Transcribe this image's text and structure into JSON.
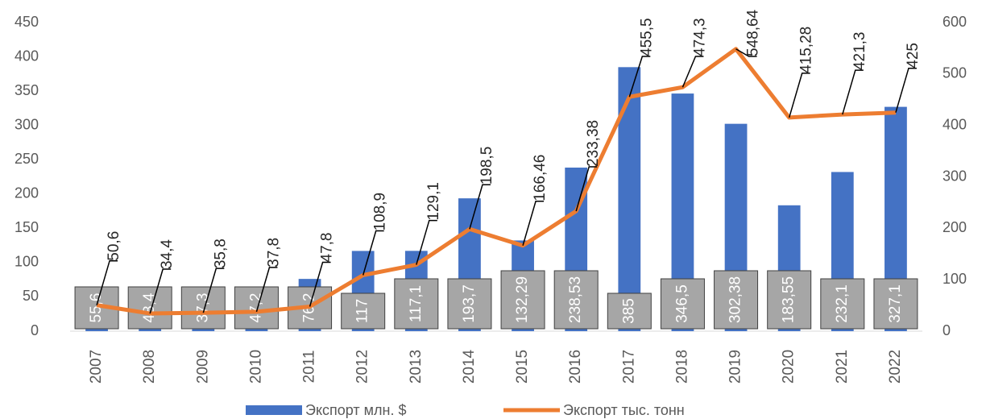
{
  "chart_data": {
    "type": "combo",
    "categories": [
      "2007",
      "2008",
      "2009",
      "2010",
      "2011",
      "2012",
      "2013",
      "2014",
      "2015",
      "2016",
      "2017",
      "2018",
      "2019",
      "2020",
      "2021",
      "2022"
    ],
    "series": [
      {
        "name": "Экспорт млн. $",
        "type": "bar",
        "color": "#4472c4",
        "values": [
          55.6,
          48.4,
          37.3,
          47.2,
          76.2,
          117,
          117.1,
          193.7,
          132.29,
          238.53,
          385,
          346.5,
          302.38,
          183.55,
          232.1,
          327.1
        ],
        "value_labels": [
          "55,6",
          "48,4",
          "37,3",
          "47,2",
          "76,2",
          "117",
          "117,1",
          "193,7",
          "132,29",
          "238,53",
          "385",
          "346,5",
          "302,38",
          "183,55",
          "232,1",
          "327,1"
        ]
      },
      {
        "name": "Экспорт тыс. тонн",
        "type": "line",
        "axis": "y2",
        "color": "#ed7d31",
        "values": [
          50.6,
          34.4,
          35.8,
          37.8,
          47.8,
          108.9,
          129.1,
          198.5,
          166.46,
          233.38,
          455.5,
          474.3,
          548.64,
          415.28,
          421.3,
          425
        ],
        "value_labels": [
          "50,6",
          "34,4",
          "35,8",
          "37,8",
          "47,8",
          "108,9",
          "129,1",
          "198,5",
          "166,46",
          "233,38",
          "455,5",
          "474,3",
          "548,64",
          "415,28",
          "421,3",
          "425"
        ]
      }
    ],
    "ylim": [
      0,
      450
    ],
    "yticks": [
      0,
      50,
      100,
      150,
      200,
      250,
      300,
      350,
      400,
      450
    ],
    "y2lim": [
      0,
      600
    ],
    "y2ticks": [
      0,
      100,
      200,
      300,
      400,
      500,
      600
    ],
    "legend": "bottom"
  }
}
